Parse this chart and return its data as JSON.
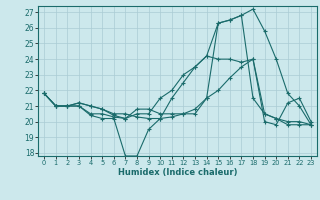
{
  "xlabel": "Humidex (Indice chaleur)",
  "bg_color": "#cce8ec",
  "line_color": "#1a6b6b",
  "grid_color": "#aaccd4",
  "xlim": [
    -0.5,
    23.5
  ],
  "ylim": [
    17.8,
    27.4
  ],
  "xticks": [
    0,
    1,
    2,
    3,
    4,
    5,
    6,
    7,
    8,
    9,
    10,
    11,
    12,
    13,
    14,
    15,
    16,
    17,
    18,
    19,
    20,
    21,
    22,
    23
  ],
  "yticks": [
    18,
    19,
    20,
    21,
    22,
    23,
    24,
    25,
    26,
    27
  ],
  "series": [
    [
      21.8,
      21.0,
      21.0,
      21.0,
      20.4,
      20.2,
      20.2,
      17.8,
      17.8,
      19.5,
      20.2,
      21.5,
      22.5,
      23.5,
      24.2,
      24.0,
      24.0,
      23.8,
      24.0,
      20.0,
      19.8,
      21.2,
      21.5,
      20.0
    ],
    [
      21.8,
      21.0,
      21.0,
      21.2,
      21.0,
      20.8,
      20.5,
      20.5,
      20.3,
      20.2,
      20.2,
      20.3,
      20.5,
      20.8,
      21.5,
      22.0,
      22.8,
      23.5,
      24.0,
      20.5,
      20.2,
      20.0,
      20.0,
      19.8
    ],
    [
      21.8,
      21.0,
      21.0,
      21.0,
      20.5,
      20.5,
      20.3,
      20.2,
      20.5,
      20.5,
      21.5,
      22.0,
      23.0,
      23.5,
      24.2,
      26.3,
      26.5,
      26.8,
      27.2,
      25.8,
      24.0,
      21.8,
      21.0,
      19.8
    ],
    [
      21.8,
      21.0,
      21.0,
      21.2,
      21.0,
      20.8,
      20.4,
      20.2,
      20.8,
      20.8,
      20.5,
      20.5,
      20.5,
      20.5,
      21.5,
      26.3,
      26.5,
      26.8,
      21.5,
      20.5,
      20.2,
      19.8,
      19.8,
      19.8
    ]
  ]
}
